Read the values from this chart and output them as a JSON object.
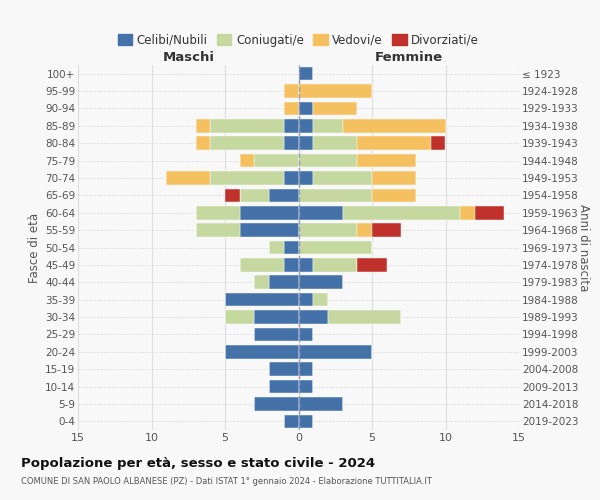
{
  "age_groups": [
    "0-4",
    "5-9",
    "10-14",
    "15-19",
    "20-24",
    "25-29",
    "30-34",
    "35-39",
    "40-44",
    "45-49",
    "50-54",
    "55-59",
    "60-64",
    "65-69",
    "70-74",
    "75-79",
    "80-84",
    "85-89",
    "90-94",
    "95-99",
    "100+"
  ],
  "birth_years": [
    "2019-2023",
    "2014-2018",
    "2009-2013",
    "2004-2008",
    "1999-2003",
    "1994-1998",
    "1989-1993",
    "1984-1988",
    "1979-1983",
    "1974-1978",
    "1969-1973",
    "1964-1968",
    "1959-1963",
    "1954-1958",
    "1949-1953",
    "1944-1948",
    "1939-1943",
    "1934-1938",
    "1929-1933",
    "1924-1928",
    "≤ 1923"
  ],
  "males_celibi": [
    1,
    3,
    2,
    2,
    5,
    3,
    3,
    5,
    2,
    1,
    1,
    4,
    4,
    2,
    1,
    0,
    1,
    1,
    0,
    0,
    0
  ],
  "males_coniugati": [
    0,
    0,
    0,
    0,
    0,
    0,
    2,
    0,
    1,
    3,
    1,
    3,
    3,
    2,
    5,
    3,
    5,
    5,
    0,
    0,
    0
  ],
  "males_vedovi": [
    0,
    0,
    0,
    0,
    0,
    0,
    0,
    0,
    0,
    0,
    0,
    0,
    0,
    0,
    3,
    1,
    1,
    1,
    1,
    1,
    0
  ],
  "males_divorziati": [
    0,
    0,
    0,
    0,
    0,
    0,
    0,
    0,
    0,
    0,
    0,
    0,
    0,
    1,
    0,
    0,
    0,
    0,
    0,
    0,
    0
  ],
  "females_celibi": [
    1,
    3,
    1,
    1,
    5,
    1,
    2,
    1,
    3,
    1,
    0,
    0,
    3,
    0,
    1,
    0,
    1,
    1,
    1,
    0,
    1
  ],
  "females_coniugati": [
    0,
    0,
    0,
    0,
    0,
    0,
    5,
    1,
    0,
    3,
    5,
    4,
    8,
    5,
    4,
    4,
    3,
    2,
    0,
    0,
    0
  ],
  "females_vedovi": [
    0,
    0,
    0,
    0,
    0,
    0,
    0,
    0,
    0,
    0,
    0,
    1,
    1,
    3,
    3,
    4,
    5,
    7,
    3,
    5,
    0
  ],
  "females_divorziati": [
    0,
    0,
    0,
    0,
    0,
    0,
    0,
    0,
    0,
    2,
    0,
    2,
    2,
    0,
    0,
    0,
    1,
    0,
    0,
    0,
    0
  ],
  "colors": {
    "celibi": "#4472a8",
    "coniugati": "#c5d8a0",
    "vedovi": "#f5c060",
    "divorziati": "#c0312b"
  },
  "legend_labels": [
    "Celibi/Nubili",
    "Coniugati/e",
    "Vedovi/e",
    "Divorziati/e"
  ],
  "title": "Popolazione per età, sesso e stato civile - 2024",
  "subtitle": "COMUNE DI SAN PAOLO ALBANESE (PZ) - Dati ISTAT 1° gennaio 2024 - Elaborazione TUTTITALIA.IT",
  "xlabel_left": "Maschi",
  "xlabel_right": "Femmine",
  "ylabel_left": "Fasce di età",
  "ylabel_right": "Anni di nascita",
  "xlim": 15,
  "bg_color": "#f8f8f8",
  "grid_color": "#dddddd"
}
